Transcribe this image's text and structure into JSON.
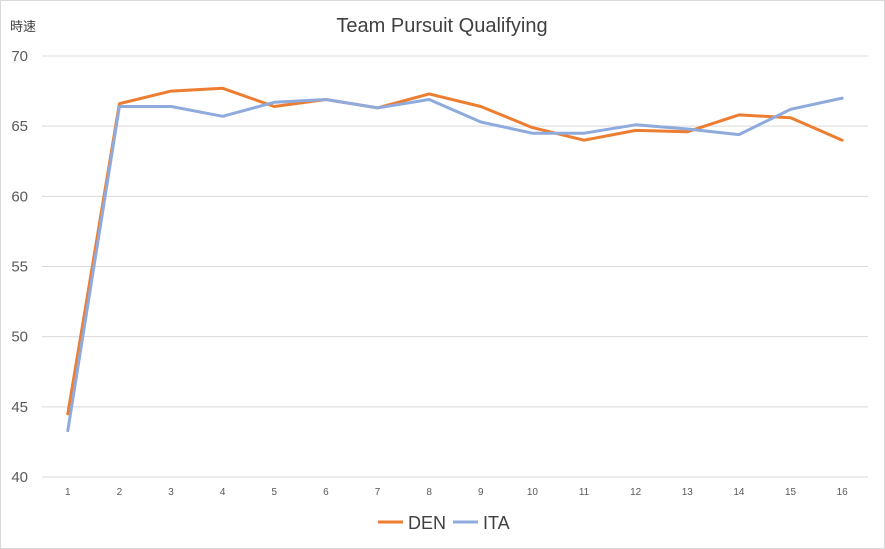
{
  "chart_data": {
    "type": "line",
    "title": "Team Pursuit Qualifying",
    "ylabel": "時速",
    "xlabel": "",
    "categories": [
      "1",
      "2",
      "3",
      "4",
      "5",
      "6",
      "7",
      "8",
      "9",
      "10",
      "11",
      "12",
      "13",
      "14",
      "15",
      "16"
    ],
    "ylim": [
      40,
      70
    ],
    "yticks": [
      40,
      45,
      50,
      55,
      60,
      65,
      70
    ],
    "grid": true,
    "legend": "bottom",
    "series": [
      {
        "name": "DEN",
        "color": "#ED7D31",
        "values": [
          44.5,
          66.6,
          67.5,
          67.7,
          66.4,
          66.9,
          66.3,
          67.3,
          66.4,
          64.9,
          64.0,
          64.7,
          64.6,
          65.8,
          65.6,
          64.0
        ]
      },
      {
        "name": "ITA",
        "color": "#8FAADC",
        "values": [
          43.3,
          66.4,
          66.4,
          65.7,
          66.7,
          66.9,
          66.3,
          66.9,
          65.3,
          64.5,
          64.5,
          65.1,
          64.8,
          64.4,
          66.2,
          67.0
        ]
      }
    ]
  }
}
